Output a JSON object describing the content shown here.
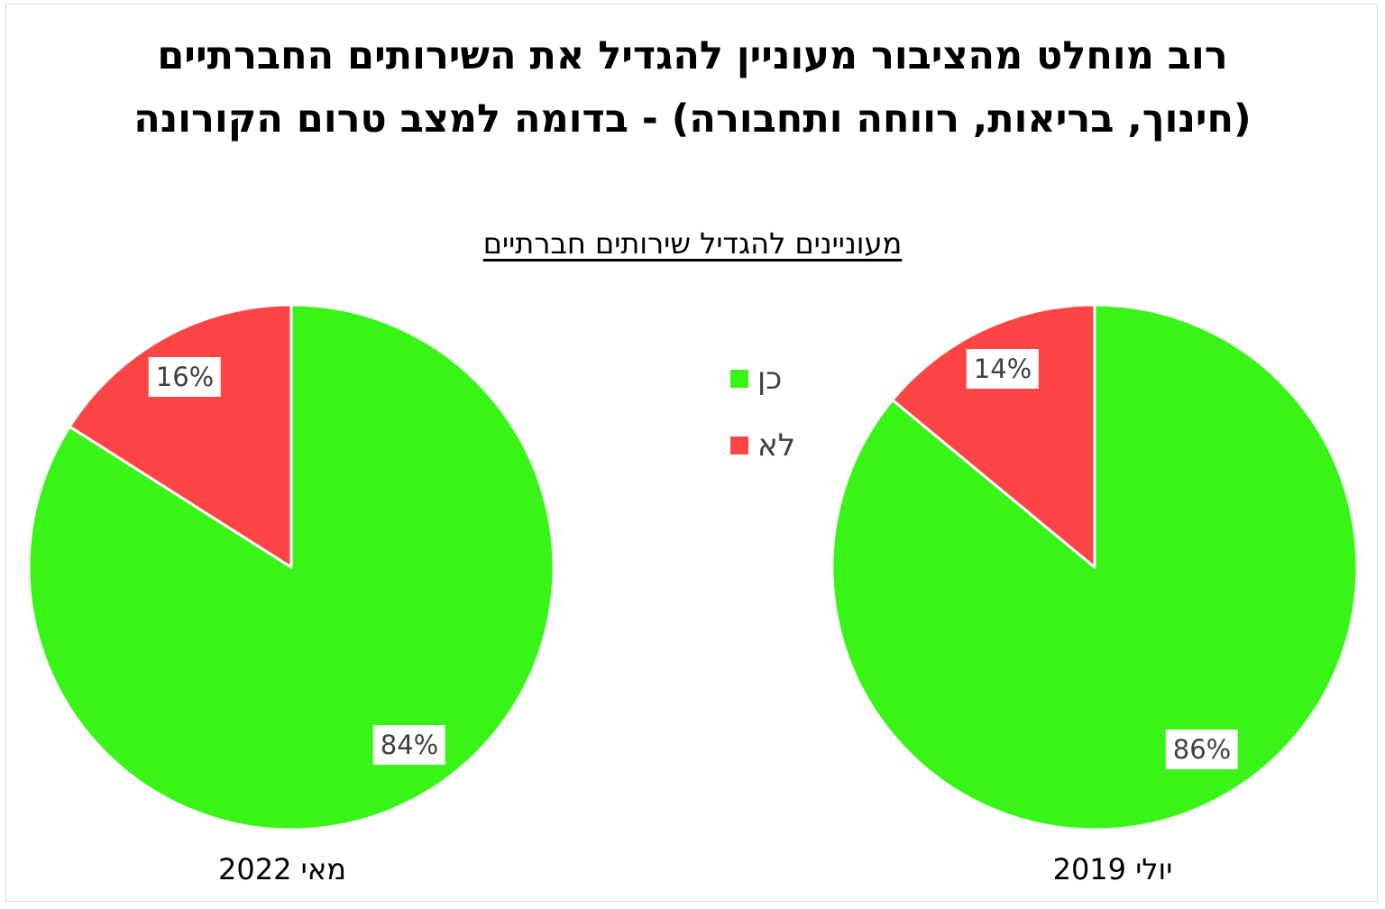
{
  "title": {
    "line1": "רוב מוחלט מהציבור מעוניין להגדיל את השירותים החברתיים",
    "line2": "(חינוך, בריאות, רווחה ותחבורה) - בדומה למצב טרום הקורונה"
  },
  "subtitle": "מעוניינים להגדיל שירותים חברתיים",
  "colors": {
    "yes": "#39f417",
    "no": "#fd4545"
  },
  "legend": {
    "items": [
      {
        "label": "כן",
        "color": "#39f417"
      },
      {
        "label": "לא",
        "color": "#fd4545"
      }
    ]
  },
  "chart_data": [
    {
      "type": "pie",
      "caption": "מאי 2022",
      "slices": [
        {
          "name": "כן",
          "value": 84,
          "label": "84%",
          "color": "#39f417"
        },
        {
          "name": "לא",
          "value": 16,
          "label": "16%",
          "color": "#fd4545"
        }
      ],
      "legend_position": "center"
    },
    {
      "type": "pie",
      "caption": "יולי 2019",
      "slices": [
        {
          "name": "כן",
          "value": 86,
          "label": "86%",
          "color": "#39f417"
        },
        {
          "name": "לא",
          "value": 14,
          "label": "14%",
          "color": "#fd4545"
        }
      ],
      "legend_position": "center"
    }
  ]
}
